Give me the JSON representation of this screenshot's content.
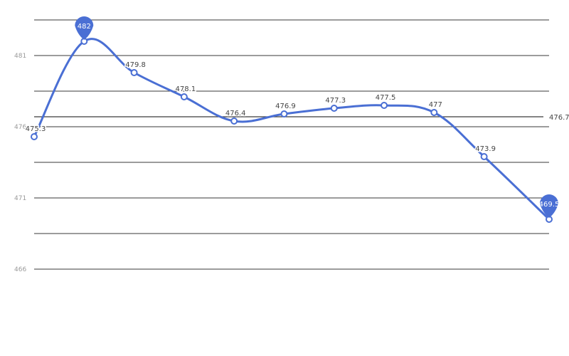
{
  "chart_data": {
    "type": "line",
    "title": "",
    "xlabel": "",
    "ylabel": "",
    "ylim": [
      466,
      483
    ],
    "y_ticks": [
      466,
      468.5,
      471,
      473.5,
      476,
      478.5,
      481,
      483.5
    ],
    "y_tick_labels": [
      "466",
      "",
      "471",
      "",
      "476",
      "",
      "481",
      ""
    ],
    "x_tick_labels": [
      "",
      "",
      "",
      "",
      "",
      ""
    ],
    "x": [
      0,
      1,
      2,
      3,
      4,
      5,
      6,
      7,
      8,
      9,
      10.3
    ],
    "series": [
      {
        "values": [
          475.3,
          482,
          479.8,
          478.1,
          476.4,
          476.9,
          477.3,
          477.5,
          477,
          473.9,
          469.5
        ],
        "labels": [
          "475.3",
          "482",
          "479.8",
          "478.1",
          "476.4",
          "476.9",
          "477.3",
          "477.5",
          "477",
          "473.9",
          "469.5"
        ],
        "color": "#4a6fd4"
      }
    ],
    "reference_line": {
      "value": 476.7,
      "label": "476.7"
    },
    "max_marker": {
      "index": 1,
      "label": "482"
    },
    "min_marker": {
      "index": 10,
      "label": "469.5"
    },
    "grid": true,
    "legend": "none"
  },
  "caption": "",
  "colors": {
    "series": "#4a6fd4",
    "grid": "#3a3a3a",
    "background": "#ffffff"
  }
}
